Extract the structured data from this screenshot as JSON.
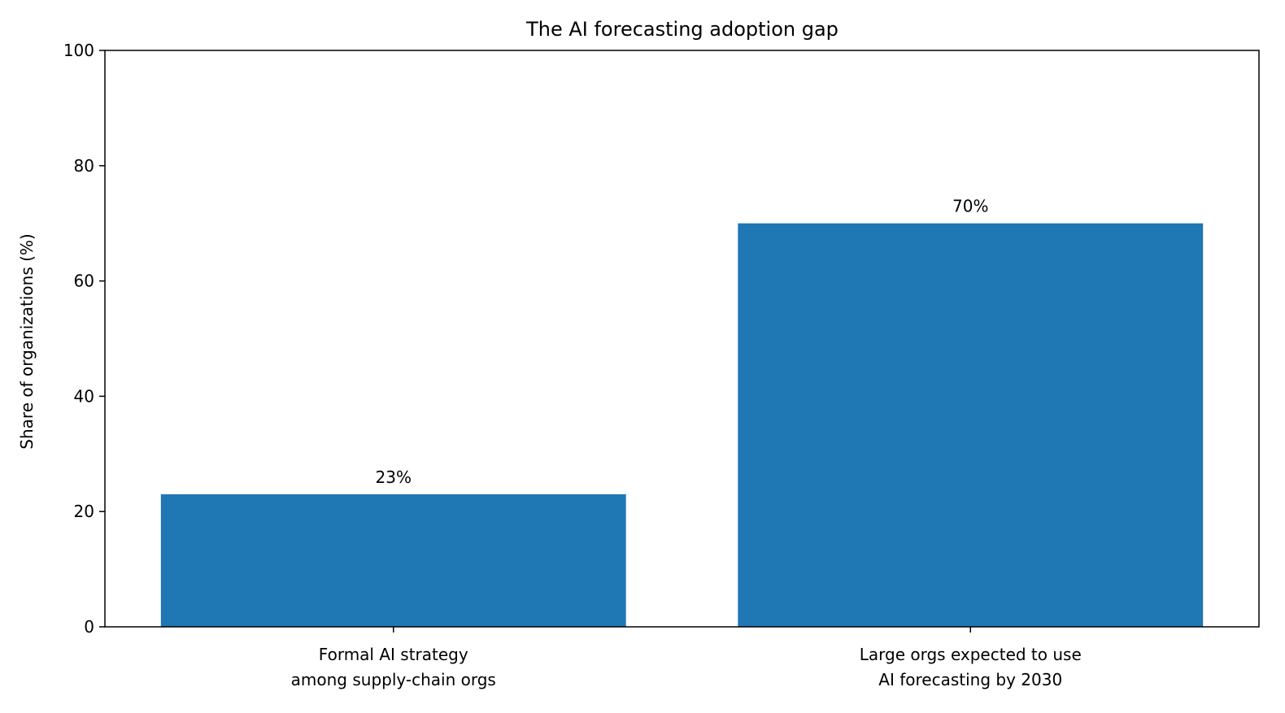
{
  "chart_data": {
    "type": "bar",
    "title": "The AI forecasting adoption gap",
    "xlabel": "",
    "ylabel": "Share of organizations (%)",
    "categories": [
      [
        "Formal AI strategy",
        "among supply-chain orgs"
      ],
      [
        "Large orgs expected to use",
        "AI forecasting by 2030"
      ]
    ],
    "values": [
      23,
      70
    ],
    "value_labels": [
      "23%",
      "70%"
    ],
    "ylim": [
      0,
      100
    ],
    "yticks": [
      0,
      20,
      40,
      60,
      80,
      100
    ],
    "ytick_labels": [
      "0",
      "20",
      "40",
      "60",
      "80",
      "100"
    ],
    "grid": false,
    "legend": "none",
    "colors": {
      "bar": "#1f77b4",
      "axis": "#000000",
      "background": "#ffffff"
    }
  }
}
